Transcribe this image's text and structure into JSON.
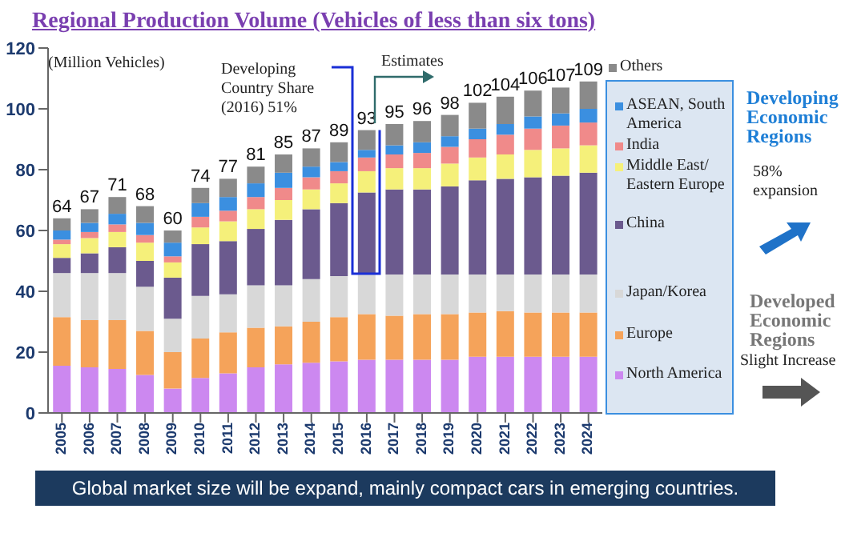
{
  "chart_data": {
    "type": "bar",
    "title": "Regional Production Volume (Vehicles of less than six tons)",
    "ylabel": "(Million Vehicles)",
    "categories": [
      "2005",
      "2006",
      "2007",
      "2008",
      "2009",
      "2010",
      "2011",
      "2012",
      "2013",
      "2014",
      "2015",
      "2016",
      "2017",
      "2018",
      "2019",
      "2020",
      "2021",
      "2022",
      "2023",
      "2024"
    ],
    "stacked": true,
    "series": [
      {
        "name": "North America",
        "color": "#cc88f0",
        "values": [
          15.5,
          15,
          14.5,
          12.5,
          8,
          11.5,
          13,
          15,
          16,
          16.5,
          17,
          17.5,
          17.5,
          17.5,
          17.5,
          18.5,
          18.5,
          18.5,
          18.5,
          18.5
        ]
      },
      {
        "name": "Europe",
        "color": "#f5a35a",
        "values": [
          16,
          15.5,
          16,
          14.5,
          12,
          13,
          13.5,
          13,
          12.5,
          13.5,
          14.5,
          15,
          14.5,
          15,
          15,
          14.5,
          15,
          14.5,
          14.5,
          14.5
        ]
      },
      {
        "name": "Japan/Korea",
        "color": "#d8d8d8",
        "values": [
          14.5,
          15.5,
          15.5,
          14.5,
          11,
          14,
          12.5,
          14,
          13.5,
          14,
          13.5,
          13,
          13.5,
          13,
          13,
          12.5,
          12,
          12.5,
          12.5,
          12.5
        ]
      },
      {
        "name": "China",
        "color": "#6b5a8e",
        "values": [
          5,
          6.5,
          8.5,
          8.5,
          13.5,
          17,
          17.5,
          18.5,
          21.5,
          23,
          24,
          27,
          28,
          28,
          29,
          31,
          31.5,
          32,
          32.5,
          33.5
        ]
      },
      {
        "name": "Middle East/ Eastern Europe",
        "color": "#f5f07a",
        "values": [
          4.5,
          5,
          5,
          6,
          5,
          5.5,
          6.5,
          6.5,
          6.5,
          6.5,
          6.5,
          7,
          7,
          7,
          7.5,
          7.5,
          8,
          9,
          9,
          9
        ]
      },
      {
        "name": "India",
        "color": "#f08a8a",
        "values": [
          1.5,
          2,
          2.5,
          2.5,
          2,
          3.5,
          3.5,
          4,
          4,
          4,
          4,
          4.5,
          4.5,
          5,
          5.5,
          6,
          6.5,
          7,
          7.5,
          7.5
        ]
      },
      {
        "name": "ASEAN, South America",
        "color": "#3b8fe0",
        "values": [
          3,
          3,
          3.5,
          4,
          4.5,
          4.5,
          4.5,
          4.5,
          5,
          3.5,
          3,
          2.5,
          3,
          3.5,
          3.5,
          3.5,
          3.5,
          4,
          4,
          4.5
        ]
      },
      {
        "name": "Others",
        "color": "#8a8a8a",
        "values": [
          4,
          4.5,
          5.5,
          5.5,
          4,
          5,
          6,
          5.5,
          6,
          6,
          6.5,
          6.5,
          7,
          7,
          7,
          8.5,
          9,
          8.5,
          8.5,
          9
        ]
      }
    ],
    "totals": [
      "64",
      "67",
      "71",
      "68",
      "60",
      "74",
      "77",
      "81",
      "85",
      "87",
      "89",
      "93",
      "95",
      "96",
      "98",
      "102",
      "104",
      "106",
      "107",
      "109"
    ],
    "ylim": [
      0,
      120
    ],
    "yticks": [
      0,
      20,
      40,
      60,
      80,
      100,
      120
    ],
    "grid": false,
    "legend": "right",
    "annotations": [
      {
        "text": "Developing Country Share (2016) 51%",
        "x": "2016",
        "y": 93
      },
      "Estimates",
      "Developing Economic Regions",
      "58% expansion",
      "Developed Economic Regions",
      "Slight Increase",
      "Global market size will be expand, mainly compact cars in emerging countries."
    ]
  }
}
